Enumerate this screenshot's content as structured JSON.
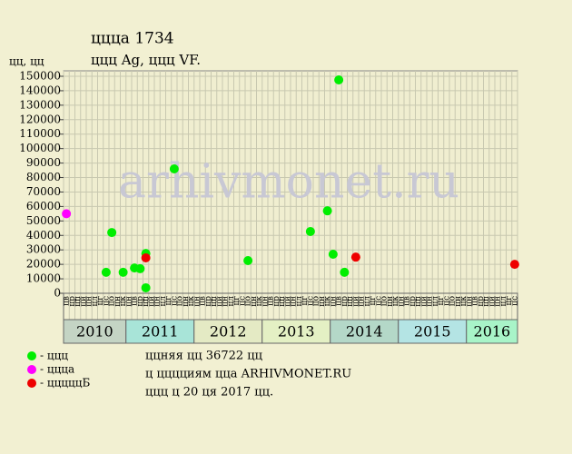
{
  "chart_data": {
    "type": "scatter",
    "title": "ццца 1734",
    "subtitle": "ццц Ag, ццц VF.",
    "y_label": "цц, цц",
    "watermark": "arhivmonet.ru",
    "xlim": [
      "2010-02",
      "2016-09"
    ],
    "years": [
      "2010",
      "2011",
      "2012",
      "2013",
      "2014",
      "2015",
      "2016"
    ],
    "year_colors": [
      "#c4d4c4",
      "#a8e4d8",
      "#e4eac4",
      "#e4f0c4",
      "#b4d8c8",
      "#b4e4e4",
      "#a8f4c8"
    ],
    "month_labels": [
      "цн",
      "цв",
      "цр",
      "цп",
      "цй",
      "цн",
      "цл",
      "цг",
      "цс",
      "цо",
      "цн",
      "цк"
    ],
    "ylim": [
      0,
      150000
    ],
    "yticks": [
      0,
      10000,
      20000,
      30000,
      40000,
      50000,
      60000,
      70000,
      80000,
      90000,
      100000,
      110000,
      120000,
      130000,
      140000,
      150000
    ],
    "grid": true,
    "series": [
      {
        "name": "- ццц",
        "color": "#00ee00",
        "x": [
          "2010-09",
          "2010-10",
          "2010-12",
          "2011-02",
          "2011-03",
          "2011-04",
          "2011-04",
          "2011-09",
          "2012-10",
          "2013-09",
          "2013-12",
          "2014-01",
          "2014-02",
          "2014-03"
        ],
        "values": [
          14500,
          42000,
          14500,
          17500,
          17000,
          27500,
          3800,
          86000,
          22600,
          42700,
          57000,
          27000,
          147500,
          14500
        ]
      },
      {
        "name": "- ццца",
        "color": "#ff00ff",
        "x": [
          "2010-02"
        ],
        "values": [
          55000
        ]
      },
      {
        "name": "- цццццБ",
        "color": "#ee0000",
        "x": [
          "2011-04",
          "2014-05",
          "2016-09"
        ],
        "values": [
          24500,
          25000,
          20000
        ]
      }
    ],
    "footer": [
      "ццняя цц 36722 цц",
      "ц цццциям ццa ARHIVMONET.RU",
      "ццц ц 20 ця 2017 цц."
    ]
  }
}
